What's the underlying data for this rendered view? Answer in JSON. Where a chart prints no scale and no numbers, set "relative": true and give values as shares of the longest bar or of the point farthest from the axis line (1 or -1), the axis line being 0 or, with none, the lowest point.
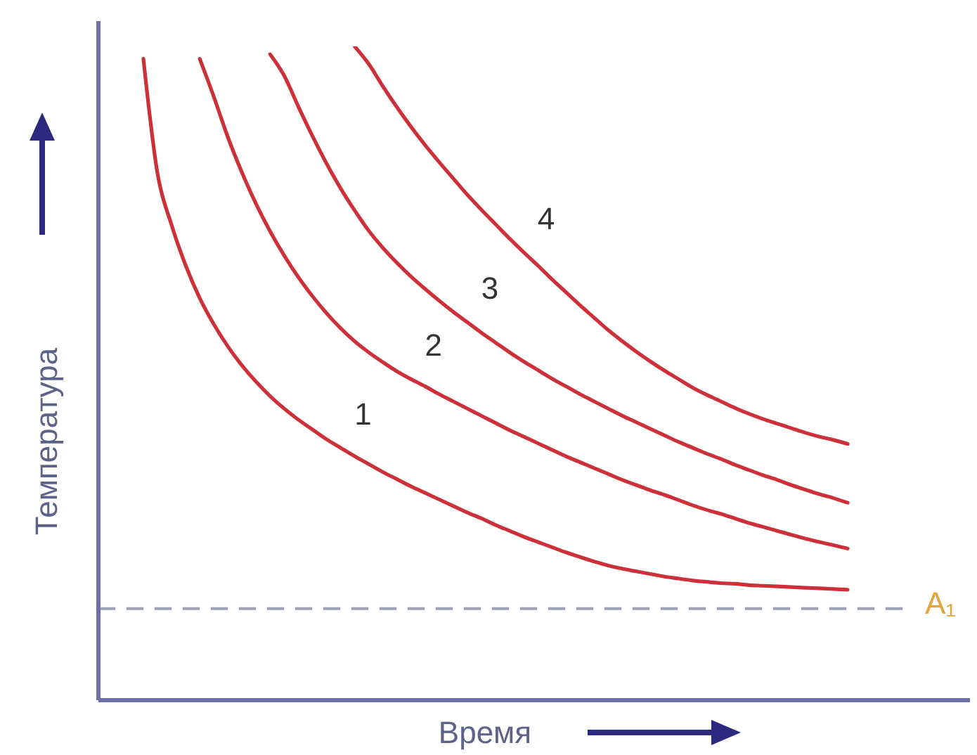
{
  "chart_data": {
    "type": "line",
    "relative": true,
    "xlabel": "Время",
    "ylabel": "Температура",
    "categories": [
      null,
      null,
      null,
      null,
      null,
      null,
      null,
      null,
      null,
      null,
      null,
      null,
      null,
      null,
      null,
      null,
      null,
      null,
      null,
      null,
      null,
      null,
      null,
      null,
      null,
      null,
      null,
      null,
      null,
      null,
      null,
      null,
      null,
      null,
      null,
      null,
      null,
      null,
      null,
      null,
      null,
      null,
      null,
      null,
      null,
      null,
      null,
      null,
      null,
      null,
      null
    ],
    "series": [
      {
        "name": "1",
        "color": "#cd3039",
        "values": [
          0.981,
          0.806,
          0.727,
          0.665,
          0.615,
          0.575,
          0.541,
          0.512,
          0.487,
          0.465,
          0.446,
          0.429,
          0.414,
          0.399,
          0.386,
          0.373,
          0.361,
          0.349,
          0.338,
          0.327,
          0.317,
          0.307,
          0.297,
          0.287,
          0.278,
          0.268,
          0.259,
          0.25,
          0.242,
          0.234,
          0.226,
          0.219,
          0.212,
          0.206,
          0.201,
          0.197,
          0.193,
          0.189,
          0.186,
          0.183,
          0.181,
          0.179,
          0.178,
          0.176,
          0.175,
          0.174,
          0.173,
          0.172,
          0.171,
          0.17,
          0.169
        ]
      },
      {
        "name": "2",
        "color": "#cd3039",
        "values": [
          null,
          null,
          null,
          null,
          0.981,
          0.923,
          0.861,
          0.807,
          0.759,
          0.717,
          0.68,
          0.647,
          0.618,
          0.592,
          0.569,
          0.549,
          0.532,
          0.517,
          0.503,
          0.491,
          0.48,
          0.468,
          0.457,
          0.446,
          0.435,
          0.424,
          0.413,
          0.403,
          0.393,
          0.383,
          0.373,
          0.364,
          0.355,
          0.346,
          0.337,
          0.329,
          0.321,
          0.314,
          0.306,
          0.298,
          0.291,
          0.285,
          0.278,
          0.271,
          0.265,
          0.259,
          0.253,
          0.247,
          0.242,
          0.237,
          0.232
        ]
      },
      {
        "name": "3",
        "color": "#cd3039",
        "values": [
          null,
          null,
          null,
          null,
          null,
          null,
          null,
          null,
          null,
          0.988,
          0.955,
          0.908,
          0.863,
          0.821,
          0.783,
          0.749,
          0.718,
          0.692,
          0.669,
          0.648,
          0.629,
          0.611,
          0.594,
          0.578,
          0.562,
          0.547,
          0.532,
          0.518,
          0.505,
          0.492,
          0.48,
          0.468,
          0.457,
          0.446,
          0.435,
          0.425,
          0.415,
          0.405,
          0.395,
          0.386,
          0.377,
          0.369,
          0.36,
          0.352,
          0.344,
          0.337,
          0.329,
          0.322,
          0.315,
          0.309,
          0.302
        ]
      },
      {
        "name": "4",
        "color": "#cd3039",
        "values": [
          null,
          null,
          null,
          null,
          null,
          null,
          null,
          null,
          null,
          null,
          null,
          null,
          null,
          null,
          null,
          1,
          0.973,
          0.939,
          0.907,
          0.877,
          0.849,
          0.823,
          0.798,
          0.773,
          0.75,
          0.728,
          0.706,
          0.685,
          0.665,
          0.644,
          0.624,
          0.604,
          0.585,
          0.566,
          0.549,
          0.533,
          0.518,
          0.504,
          0.491,
          0.478,
          0.467,
          0.457,
          0.447,
          0.438,
          0.43,
          0.423,
          0.416,
          0.409,
          0.403,
          0.398,
          0.392
        ]
      }
    ],
    "ref_lines": [
      {
        "axis": "y",
        "value": 0.14,
        "label": "A₁",
        "color": "#a0a3b8",
        "line_style": "dashed"
      }
    ]
  }
}
